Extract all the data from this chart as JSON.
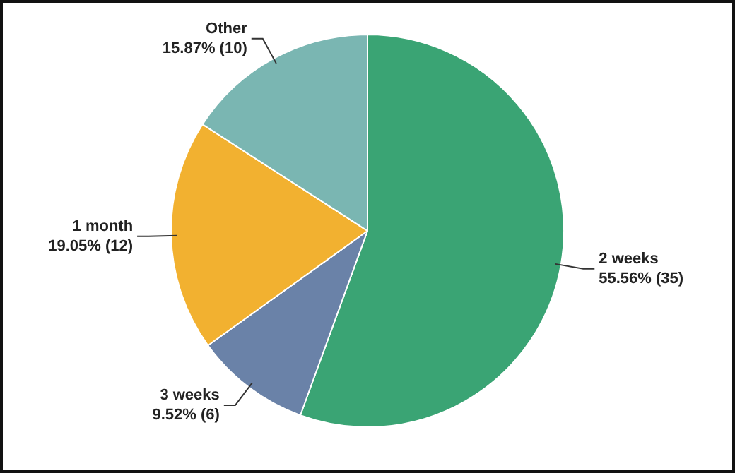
{
  "chart_data": {
    "type": "pie",
    "categories": [
      "2 weeks",
      "3 weeks",
      "1 month",
      "Other"
    ],
    "values": [
      35,
      6,
      12,
      10
    ],
    "value_labels": [
      "55.56% (35)",
      "9.52% (6)",
      "19.05% (12)",
      "15.87% (10)"
    ],
    "colors": [
      "#3aa474",
      "#6a82a8",
      "#f2b130",
      "#7ab6b2"
    ],
    "legend": false
  }
}
